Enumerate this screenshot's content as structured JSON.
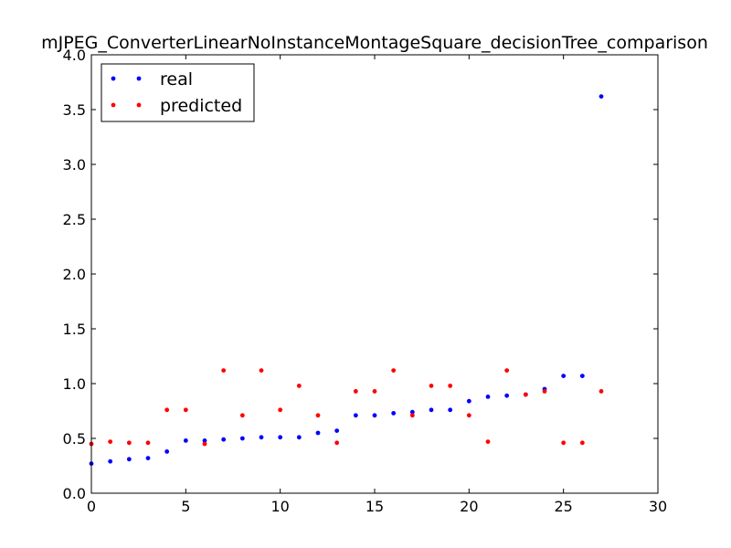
{
  "chart_data": {
    "type": "scatter",
    "title": "mJPEG_ConverterLinearNoInstanceMontageSquare_decisionTree_comparison",
    "xlabel": "",
    "ylabel": "",
    "xlim": [
      0,
      30
    ],
    "ylim": [
      0,
      4.0
    ],
    "xticks": [
      0,
      5,
      10,
      15,
      20,
      25,
      30
    ],
    "xtick_labels": [
      "0",
      "5",
      "10",
      "15",
      "20",
      "25",
      "30"
    ],
    "yticks": [
      0,
      0.5,
      1.0,
      1.5,
      2.0,
      2.5,
      3.0,
      3.5,
      4.0
    ],
    "ytick_labels": [
      "0.0",
      "0.5",
      "1.0",
      "1.5",
      "2.0",
      "2.5",
      "3.0",
      "3.5",
      "4.0"
    ],
    "grid": false,
    "legend_position": "top-left",
    "series": [
      {
        "name": "real",
        "color": "#0000ff",
        "x": [
          0,
          1,
          2,
          3,
          4,
          5,
          6,
          7,
          8,
          9,
          10,
          11,
          12,
          13,
          14,
          15,
          16,
          17,
          18,
          19,
          20,
          21,
          22,
          23,
          24,
          25,
          26,
          27
        ],
        "y": [
          0.27,
          0.29,
          0.31,
          0.32,
          0.38,
          0.48,
          0.48,
          0.49,
          0.5,
          0.51,
          0.51,
          0.51,
          0.55,
          0.57,
          0.71,
          0.71,
          0.73,
          0.74,
          0.76,
          0.76,
          0.84,
          0.88,
          0.89,
          0.9,
          0.95,
          1.07,
          1.07,
          3.62
        ]
      },
      {
        "name": "predicted",
        "color": "#ff0000",
        "x": [
          0,
          1,
          2,
          3,
          4,
          5,
          6,
          7,
          8,
          9,
          10,
          11,
          12,
          13,
          14,
          15,
          16,
          17,
          18,
          19,
          20,
          21,
          22,
          23,
          24,
          25,
          26,
          27
        ],
        "y": [
          0.45,
          0.47,
          0.46,
          0.46,
          0.76,
          0.76,
          0.45,
          1.12,
          0.71,
          1.12,
          0.76,
          0.98,
          0.71,
          0.46,
          0.93,
          0.93,
          1.12,
          0.71,
          0.98,
          0.98,
          0.71,
          0.47,
          1.12,
          0.9,
          0.93,
          0.46,
          0.46,
          0.93
        ]
      }
    ]
  }
}
